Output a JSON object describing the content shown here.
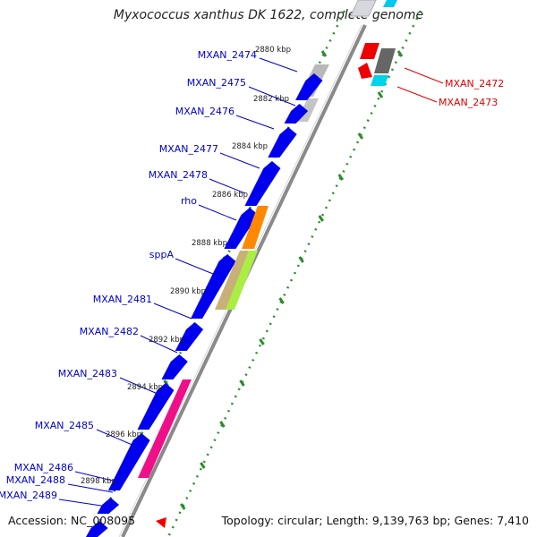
{
  "title": "Myxococcus xanthus DK 1622, complete genome",
  "footer": {
    "accession": "Accession: NC_008095",
    "summary": "Topology: circular; Length: 9,139,763 bp; Genes: 7,410"
  },
  "colors": {
    "forward": "#0000ee",
    "reverse_gene": "#ee0000",
    "label_forward": "#0000cc",
    "label_reverse": "#dd0000",
    "ruler": "#228b22",
    "backbone": "#888888"
  },
  "ticks": [
    {
      "label": "2880 kbp"
    },
    {
      "label": "2882 kbp"
    },
    {
      "label": "2884 kbp"
    },
    {
      "label": "2886 kbp"
    },
    {
      "label": "2888 kbp"
    },
    {
      "label": "2890 kbp"
    },
    {
      "label": "2892 kbp"
    },
    {
      "label": "2894 kbp"
    },
    {
      "label": "2896 kbp"
    },
    {
      "label": "2898 kbp"
    }
  ],
  "left_labels": [
    {
      "text": "MXAN_2474"
    },
    {
      "text": "MXAN_2475"
    },
    {
      "text": "MXAN_2476"
    },
    {
      "text": "MXAN_2477"
    },
    {
      "text": "MXAN_2478"
    },
    {
      "text": "rho"
    },
    {
      "text": "sppA"
    },
    {
      "text": "MXAN_2481"
    },
    {
      "text": "MXAN_2482"
    },
    {
      "text": "MXAN_2483"
    },
    {
      "text": "MXAN_2485"
    },
    {
      "text": "MXAN_2486"
    },
    {
      "text": "MXAN_2488"
    },
    {
      "text": "MXAN_2489"
    }
  ],
  "right_labels": [
    {
      "text": "MXAN_2472"
    },
    {
      "text": "MXAN_2473"
    }
  ]
}
